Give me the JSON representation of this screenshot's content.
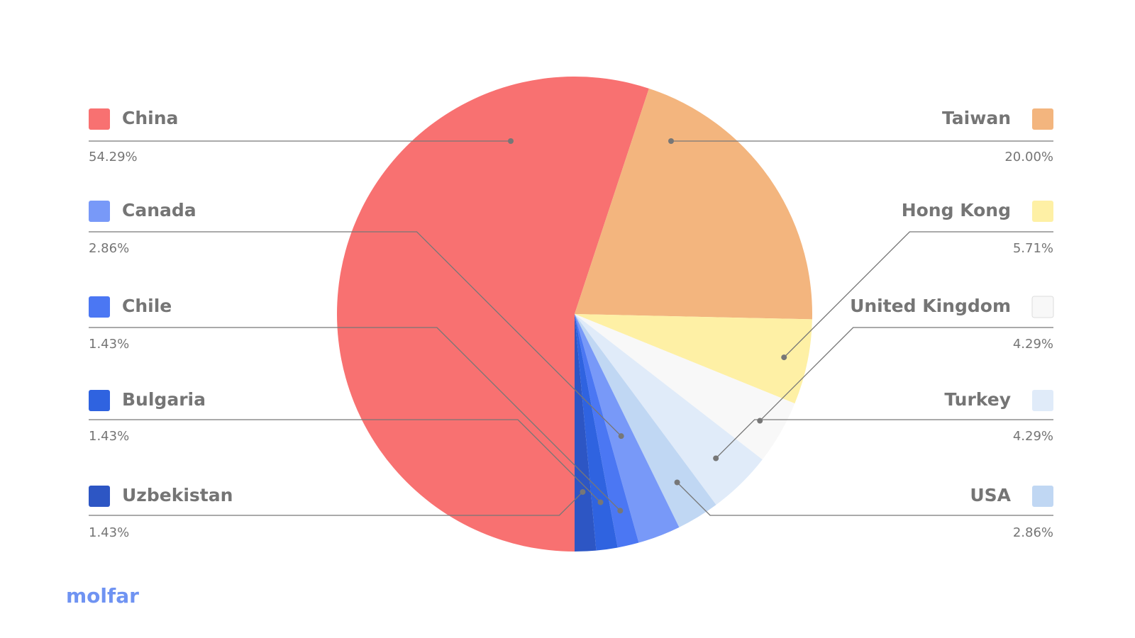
{
  "chart_data": {
    "type": "pie",
    "categories": [
      "China",
      "Taiwan",
      "Hong Kong",
      "United Kingdom",
      "Turkey",
      "USA",
      "Canada",
      "Chile",
      "Bulgaria",
      "Uzbekistan"
    ],
    "values": [
      54.29,
      20.0,
      5.71,
      4.29,
      4.29,
      2.86,
      2.86,
      1.43,
      1.43,
      1.43
    ],
    "value_labels": [
      "54.29%",
      "20.00%",
      "5.71%",
      "4.29%",
      "4.29%",
      "2.86%",
      "2.86%",
      "1.43%",
      "1.43%",
      "1.43%"
    ],
    "colors": [
      "#f87171",
      "#f3b57e",
      "#fef0a5",
      "#f8f8f8",
      "#e0ebf9",
      "#c0d7f3",
      "#7899f8",
      "#4b77f3",
      "#2f63e0",
      "#2d56c4"
    ]
  },
  "logo": "molfar"
}
